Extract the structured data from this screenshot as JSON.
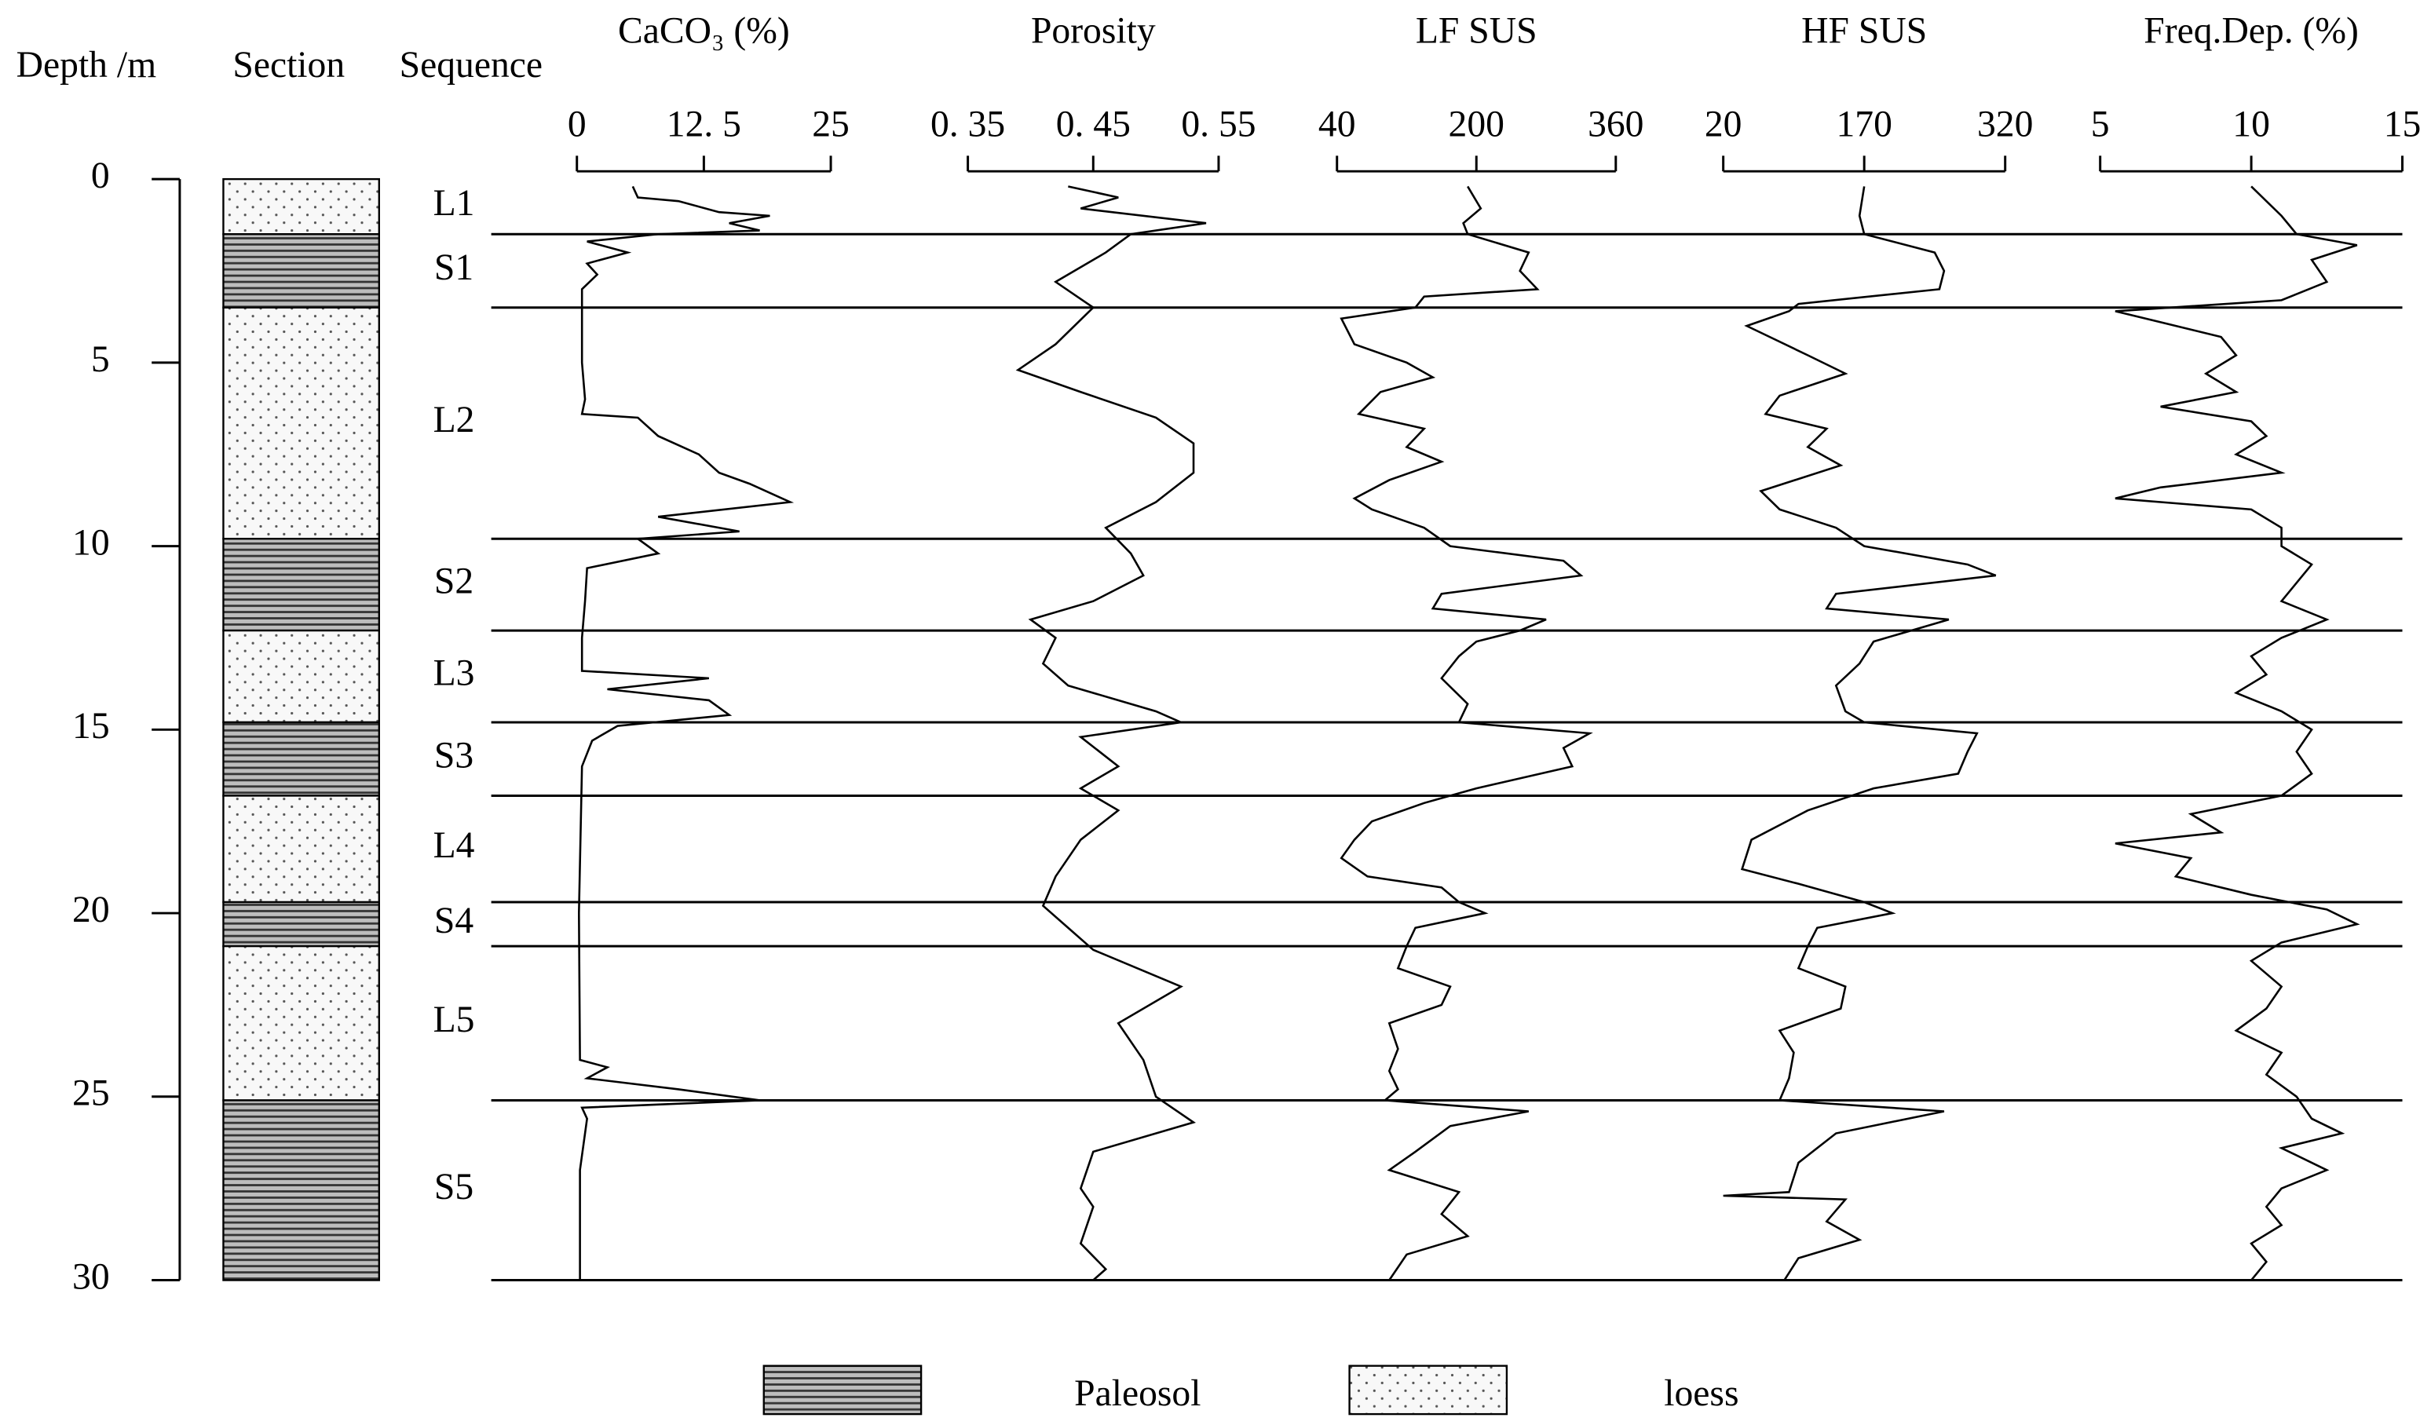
{
  "chart_data": {
    "type": "depth_profile",
    "depth_label": "Depth /m",
    "section_label": "Section",
    "sequence_label": "Sequence",
    "ylim": [
      0,
      30
    ],
    "yticks": [
      0,
      5,
      10,
      15,
      20,
      25,
      30
    ],
    "color": "#000000",
    "legend": [
      {
        "name": "Paleosol",
        "pattern": "hatch"
      },
      {
        "name": "loess",
        "pattern": "dots"
      }
    ],
    "layers": [
      {
        "name": "L1",
        "top": 0,
        "bottom": 1.5,
        "unit": "loess"
      },
      {
        "name": "S1",
        "top": 1.5,
        "bottom": 3.5,
        "unit": "Paleosol"
      },
      {
        "name": "L2",
        "top": 3.5,
        "bottom": 9.8,
        "unit": "loess"
      },
      {
        "name": "S2",
        "top": 9.8,
        "bottom": 12.3,
        "unit": "Paleosol"
      },
      {
        "name": "L3",
        "top": 12.3,
        "bottom": 14.8,
        "unit": "loess"
      },
      {
        "name": "S3",
        "top": 14.8,
        "bottom": 16.8,
        "unit": "Paleosol"
      },
      {
        "name": "L4",
        "top": 16.8,
        "bottom": 19.7,
        "unit": "loess"
      },
      {
        "name": "S4",
        "top": 19.7,
        "bottom": 20.9,
        "unit": "Paleosol"
      },
      {
        "name": "L5",
        "top": 20.9,
        "bottom": 25.1,
        "unit": "loess"
      },
      {
        "name": "S5",
        "top": 25.1,
        "bottom": 30,
        "unit": "Paleosol"
      }
    ],
    "panels": [
      {
        "type": "line",
        "title": "CaCO₃ (%)",
        "xlim": [
          0,
          25
        ],
        "xticks": [
          0,
          {
            "value": 12.5,
            "label": "12. 5"
          },
          25
        ],
        "depth": [
          0.2,
          0.5,
          0.6,
          0.9,
          1.0,
          1.2,
          1.4,
          1.5,
          1.7,
          2.0,
          2.3,
          2.6,
          3.0,
          3.5,
          5,
          6,
          6.4,
          6.5,
          7.0,
          7.5,
          8.0,
          8.3,
          8.8,
          9.2,
          9.6,
          9.8,
          10.2,
          10.6,
          11.5,
          12.5,
          13.4,
          13.6,
          13.9,
          14.2,
          14.6,
          14.9,
          15.3,
          16,
          20,
          24,
          24.2,
          24.5,
          24.8,
          25.1,
          25.3,
          25.6,
          27,
          30
        ],
        "values": [
          5.5,
          6,
          10,
          14,
          19,
          15,
          18,
          8,
          1,
          5,
          1,
          2,
          0.5,
          0.5,
          0.5,
          0.8,
          0.5,
          6,
          8,
          12,
          14,
          17,
          21,
          8,
          16,
          6,
          8,
          1,
          0.8,
          0.5,
          0.5,
          13,
          3,
          13,
          15,
          4,
          1.5,
          0.5,
          0.2,
          0.3,
          3,
          1,
          10,
          18,
          0.5,
          1,
          0.3,
          0.3
        ]
      },
      {
        "type": "line",
        "title": "Porosity",
        "xlim": [
          0.35,
          0.55
        ],
        "xticks": [
          {
            "value": 0.35,
            "label": "0. 35"
          },
          {
            "value": 0.45,
            "label": "0. 45"
          },
          {
            "value": 0.55,
            "label": "0. 55"
          }
        ],
        "depth": [
          0.2,
          0.5,
          0.8,
          1.2,
          1.5,
          2.0,
          2.8,
          3.5,
          4.5,
          5.2,
          5.8,
          6.5,
          7.2,
          8.0,
          8.8,
          9.5,
          10.2,
          10.8,
          11.5,
          12.0,
          12.5,
          13.2,
          13.8,
          14.5,
          14.8,
          15.2,
          16.0,
          16.6,
          17.2,
          18.0,
          19.0,
          19.8,
          20.4,
          21.0,
          22.0,
          23.0,
          24.0,
          25.0,
          25.7,
          26.5,
          27.5,
          28.0,
          29.0,
          29.7,
          30
        ],
        "values": [
          0.43,
          0.47,
          0.44,
          0.54,
          0.48,
          0.46,
          0.42,
          0.45,
          0.42,
          0.39,
          0.44,
          0.5,
          0.53,
          0.53,
          0.5,
          0.46,
          0.48,
          0.49,
          0.45,
          0.4,
          0.42,
          0.41,
          0.43,
          0.5,
          0.52,
          0.44,
          0.47,
          0.44,
          0.47,
          0.44,
          0.42,
          0.41,
          0.43,
          0.45,
          0.52,
          0.47,
          0.49,
          0.5,
          0.53,
          0.45,
          0.44,
          0.45,
          0.44,
          0.46,
          0.45
        ]
      },
      {
        "type": "line",
        "title": "LF SUS",
        "xlim": [
          40,
          360
        ],
        "xticks": [
          40,
          200,
          360
        ],
        "depth": [
          0.2,
          0.8,
          1.2,
          1.5,
          2.0,
          2.5,
          3.0,
          3.2,
          3.5,
          3.8,
          4.5,
          5.0,
          5.4,
          5.8,
          6.4,
          6.8,
          7.3,
          7.7,
          8.2,
          8.7,
          9.0,
          9.5,
          10.0,
          10.4,
          10.8,
          11.3,
          11.7,
          12.0,
          12.3,
          12.6,
          13.0,
          13.6,
          14.3,
          14.8,
          15.1,
          15.5,
          16.0,
          16.6,
          17.0,
          17.5,
          18.0,
          18.5,
          19.0,
          19.3,
          19.7,
          20.0,
          20.4,
          20.9,
          21.5,
          22.0,
          22.5,
          23.0,
          23.7,
          24.3,
          24.8,
          25.1,
          25.4,
          25.8,
          26.5,
          27.0,
          27.6,
          28.2,
          28.8,
          29.3,
          30
        ],
        "values": [
          190,
          205,
          185,
          190,
          260,
          250,
          270,
          140,
          130,
          45,
          60,
          120,
          150,
          90,
          65,
          140,
          120,
          160,
          100,
          60,
          80,
          140,
          170,
          300,
          320,
          160,
          150,
          280,
          250,
          200,
          180,
          160,
          190,
          180,
          330,
          300,
          310,
          200,
          140,
          80,
          60,
          45,
          75,
          160,
          180,
          210,
          130,
          120,
          110,
          170,
          160,
          100,
          110,
          100,
          110,
          95,
          260,
          170,
          130,
          100,
          180,
          160,
          190,
          120,
          100
        ]
      },
      {
        "type": "line",
        "title": "HF SUS",
        "xlim": [
          20,
          320
        ],
        "xticks": [
          20,
          170,
          320
        ],
        "depth": [
          0.2,
          1.0,
          1.5,
          2.0,
          2.5,
          3.0,
          3.4,
          3.6,
          4.0,
          4.8,
          5.3,
          5.9,
          6.4,
          6.8,
          7.3,
          7.8,
          8.5,
          9.0,
          9.5,
          10.0,
          10.5,
          10.8,
          11.3,
          11.7,
          12.0,
          12.3,
          12.6,
          13.2,
          13.8,
          14.5,
          14.8,
          15.1,
          15.6,
          16.2,
          16.6,
          17.2,
          18.0,
          18.8,
          19.2,
          19.7,
          20.0,
          20.4,
          20.9,
          21.5,
          22.0,
          22.6,
          23.2,
          23.8,
          24.5,
          25.1,
          25.4,
          26.0,
          26.8,
          27.6,
          27.7,
          27.8,
          28.4,
          28.9,
          29.4,
          30
        ],
        "values": [
          170,
          165,
          170,
          245,
          255,
          250,
          100,
          90,
          45,
          110,
          150,
          80,
          65,
          130,
          110,
          145,
          60,
          80,
          140,
          170,
          280,
          310,
          140,
          130,
          260,
          220,
          180,
          165,
          140,
          150,
          170,
          290,
          280,
          270,
          180,
          110,
          50,
          40,
          100,
          170,
          200,
          120,
          110,
          100,
          150,
          145,
          80,
          95,
          90,
          80,
          255,
          140,
          100,
          90,
          20,
          150,
          130,
          165,
          100,
          85
        ]
      },
      {
        "type": "line",
        "title": "Freq.Dep. (%)",
        "xlim": [
          5,
          15
        ],
        "xticks": [
          5,
          10,
          15
        ],
        "depth": [
          0.2,
          0.6,
          1.0,
          1.5,
          1.8,
          2.2,
          2.8,
          3.3,
          3.6,
          3.9,
          4.3,
          4.8,
          5.3,
          5.8,
          6.2,
          6.6,
          7.0,
          7.5,
          8.0,
          8.4,
          8.7,
          9.0,
          9.5,
          10.0,
          10.5,
          11.0,
          11.5,
          12.0,
          12.5,
          13.0,
          13.5,
          14.0,
          14.5,
          15.0,
          15.6,
          16.2,
          16.8,
          17.3,
          17.8,
          18.1,
          18.5,
          19.0,
          19.5,
          19.9,
          20.3,
          20.8,
          21.3,
          22.0,
          22.6,
          23.2,
          23.8,
          24.4,
          25.0,
          25.6,
          26.0,
          26.4,
          27.0,
          27.5,
          28.0,
          28.5,
          29.0,
          29.5,
          30
        ],
        "values": [
          10,
          10.5,
          11,
          11.5,
          13.5,
          12,
          12.5,
          11,
          5.5,
          7,
          9,
          9.5,
          8.5,
          9.5,
          7,
          10,
          10.5,
          9.5,
          11,
          7,
          5.5,
          10,
          11,
          11,
          12,
          11.5,
          11,
          12.5,
          11,
          10,
          10.5,
          9.5,
          11,
          12,
          11.5,
          12,
          11,
          8,
          9,
          5.5,
          8,
          7.5,
          10,
          12.5,
          13.5,
          11,
          10,
          11,
          10.5,
          9.5,
          11,
          10.5,
          11.5,
          12,
          13,
          11,
          12.5,
          11,
          10.5,
          11,
          10,
          10.5,
          10
        ]
      }
    ]
  }
}
